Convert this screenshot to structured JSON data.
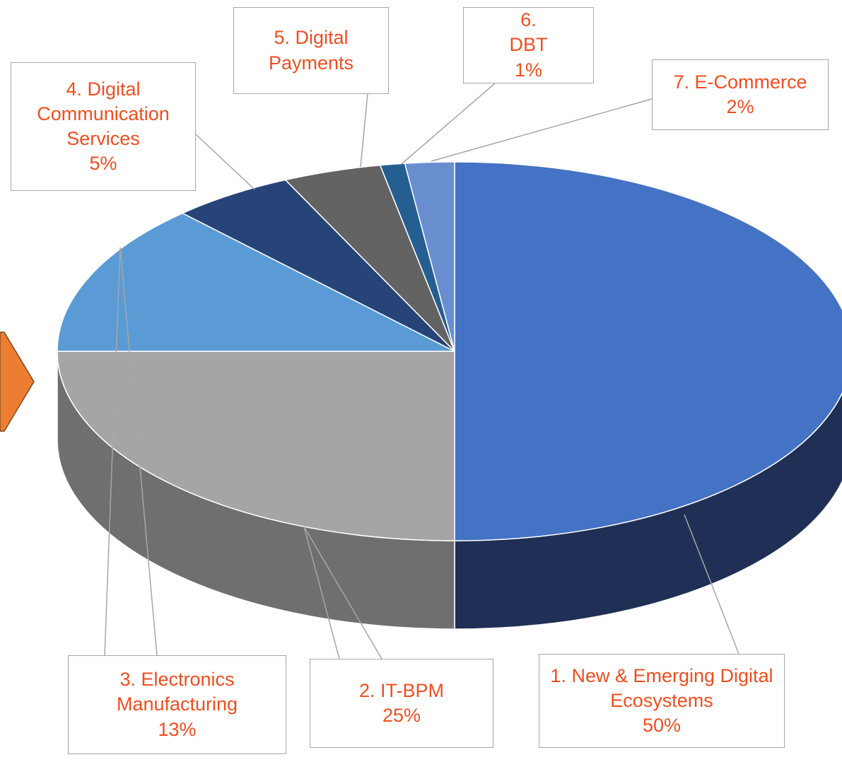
{
  "chart_data": {
    "type": "pie",
    "categories": [
      "1. New & Emerging Digital Ecosystems",
      "2. IT-BPM",
      "3. Electronics Manufacturing",
      "4. Digital Communication Services",
      "5. Digital Payments",
      "6. DBT",
      "7. E-Commerce"
    ],
    "values": [
      50,
      25,
      13,
      5,
      4,
      1,
      2
    ],
    "value_labels": [
      "50%",
      "25%",
      "13%",
      "5%",
      null,
      "1%",
      "2%"
    ],
    "colors": [
      "#4472c4",
      "#a5a5a5",
      "#5b9bd5",
      "#264478",
      "#636363",
      "#255e91",
      "#698ed0"
    ],
    "side_colors": [
      "#1f2f55",
      "#6f6f6f",
      "#3d6f9c",
      "#1a2f55",
      "#444444",
      "#1a4266",
      "#4a67a0"
    ]
  }
}
